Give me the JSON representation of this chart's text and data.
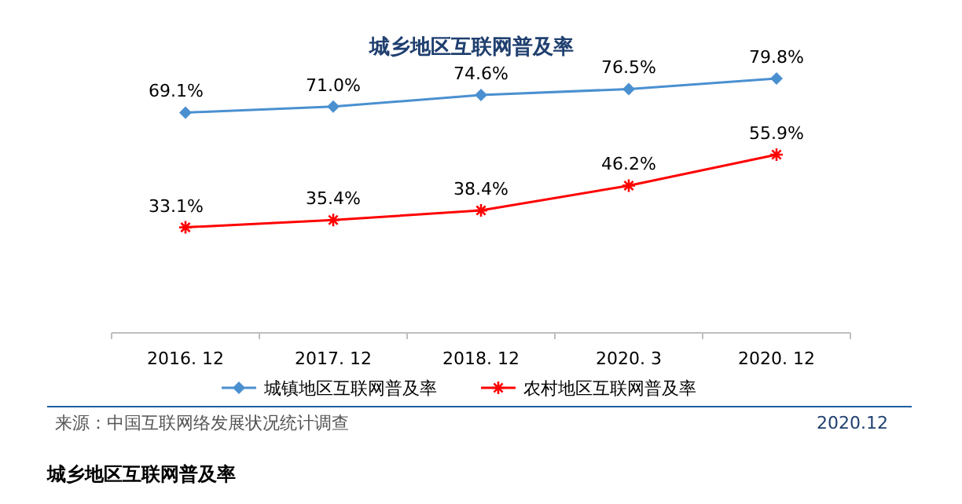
{
  "chart_data": {
    "type": "line",
    "title": "城乡地区互联网普及率",
    "categories": [
      "2016. 12",
      "2017. 12",
      "2018. 12",
      "2020. 3",
      "2020. 12"
    ],
    "series": [
      {
        "name": "城镇地区互联网普及率",
        "color": "#4a90d0",
        "marker": "diamond",
        "values": [
          69.1,
          71.0,
          74.6,
          76.5,
          79.8
        ],
        "value_labels": [
          "69.1%",
          "71.0%",
          "74.6%",
          "76.5%",
          "79.8%"
        ]
      },
      {
        "name": "农村地区互联网普及率",
        "color": "#ff0000",
        "marker": "cross",
        "values": [
          33.1,
          35.4,
          38.4,
          46.2,
          55.9
        ],
        "value_labels": [
          "33.1%",
          "35.4%",
          "38.4%",
          "46.2%",
          "55.9%"
        ]
      }
    ],
    "legend": "bottom",
    "grid": false,
    "tick_labels": "x",
    "annotations": [
      "来源：中国互联网络发展状况统计调查",
      "2020.12",
      "城乡地区互联网普及率"
    ]
  }
}
